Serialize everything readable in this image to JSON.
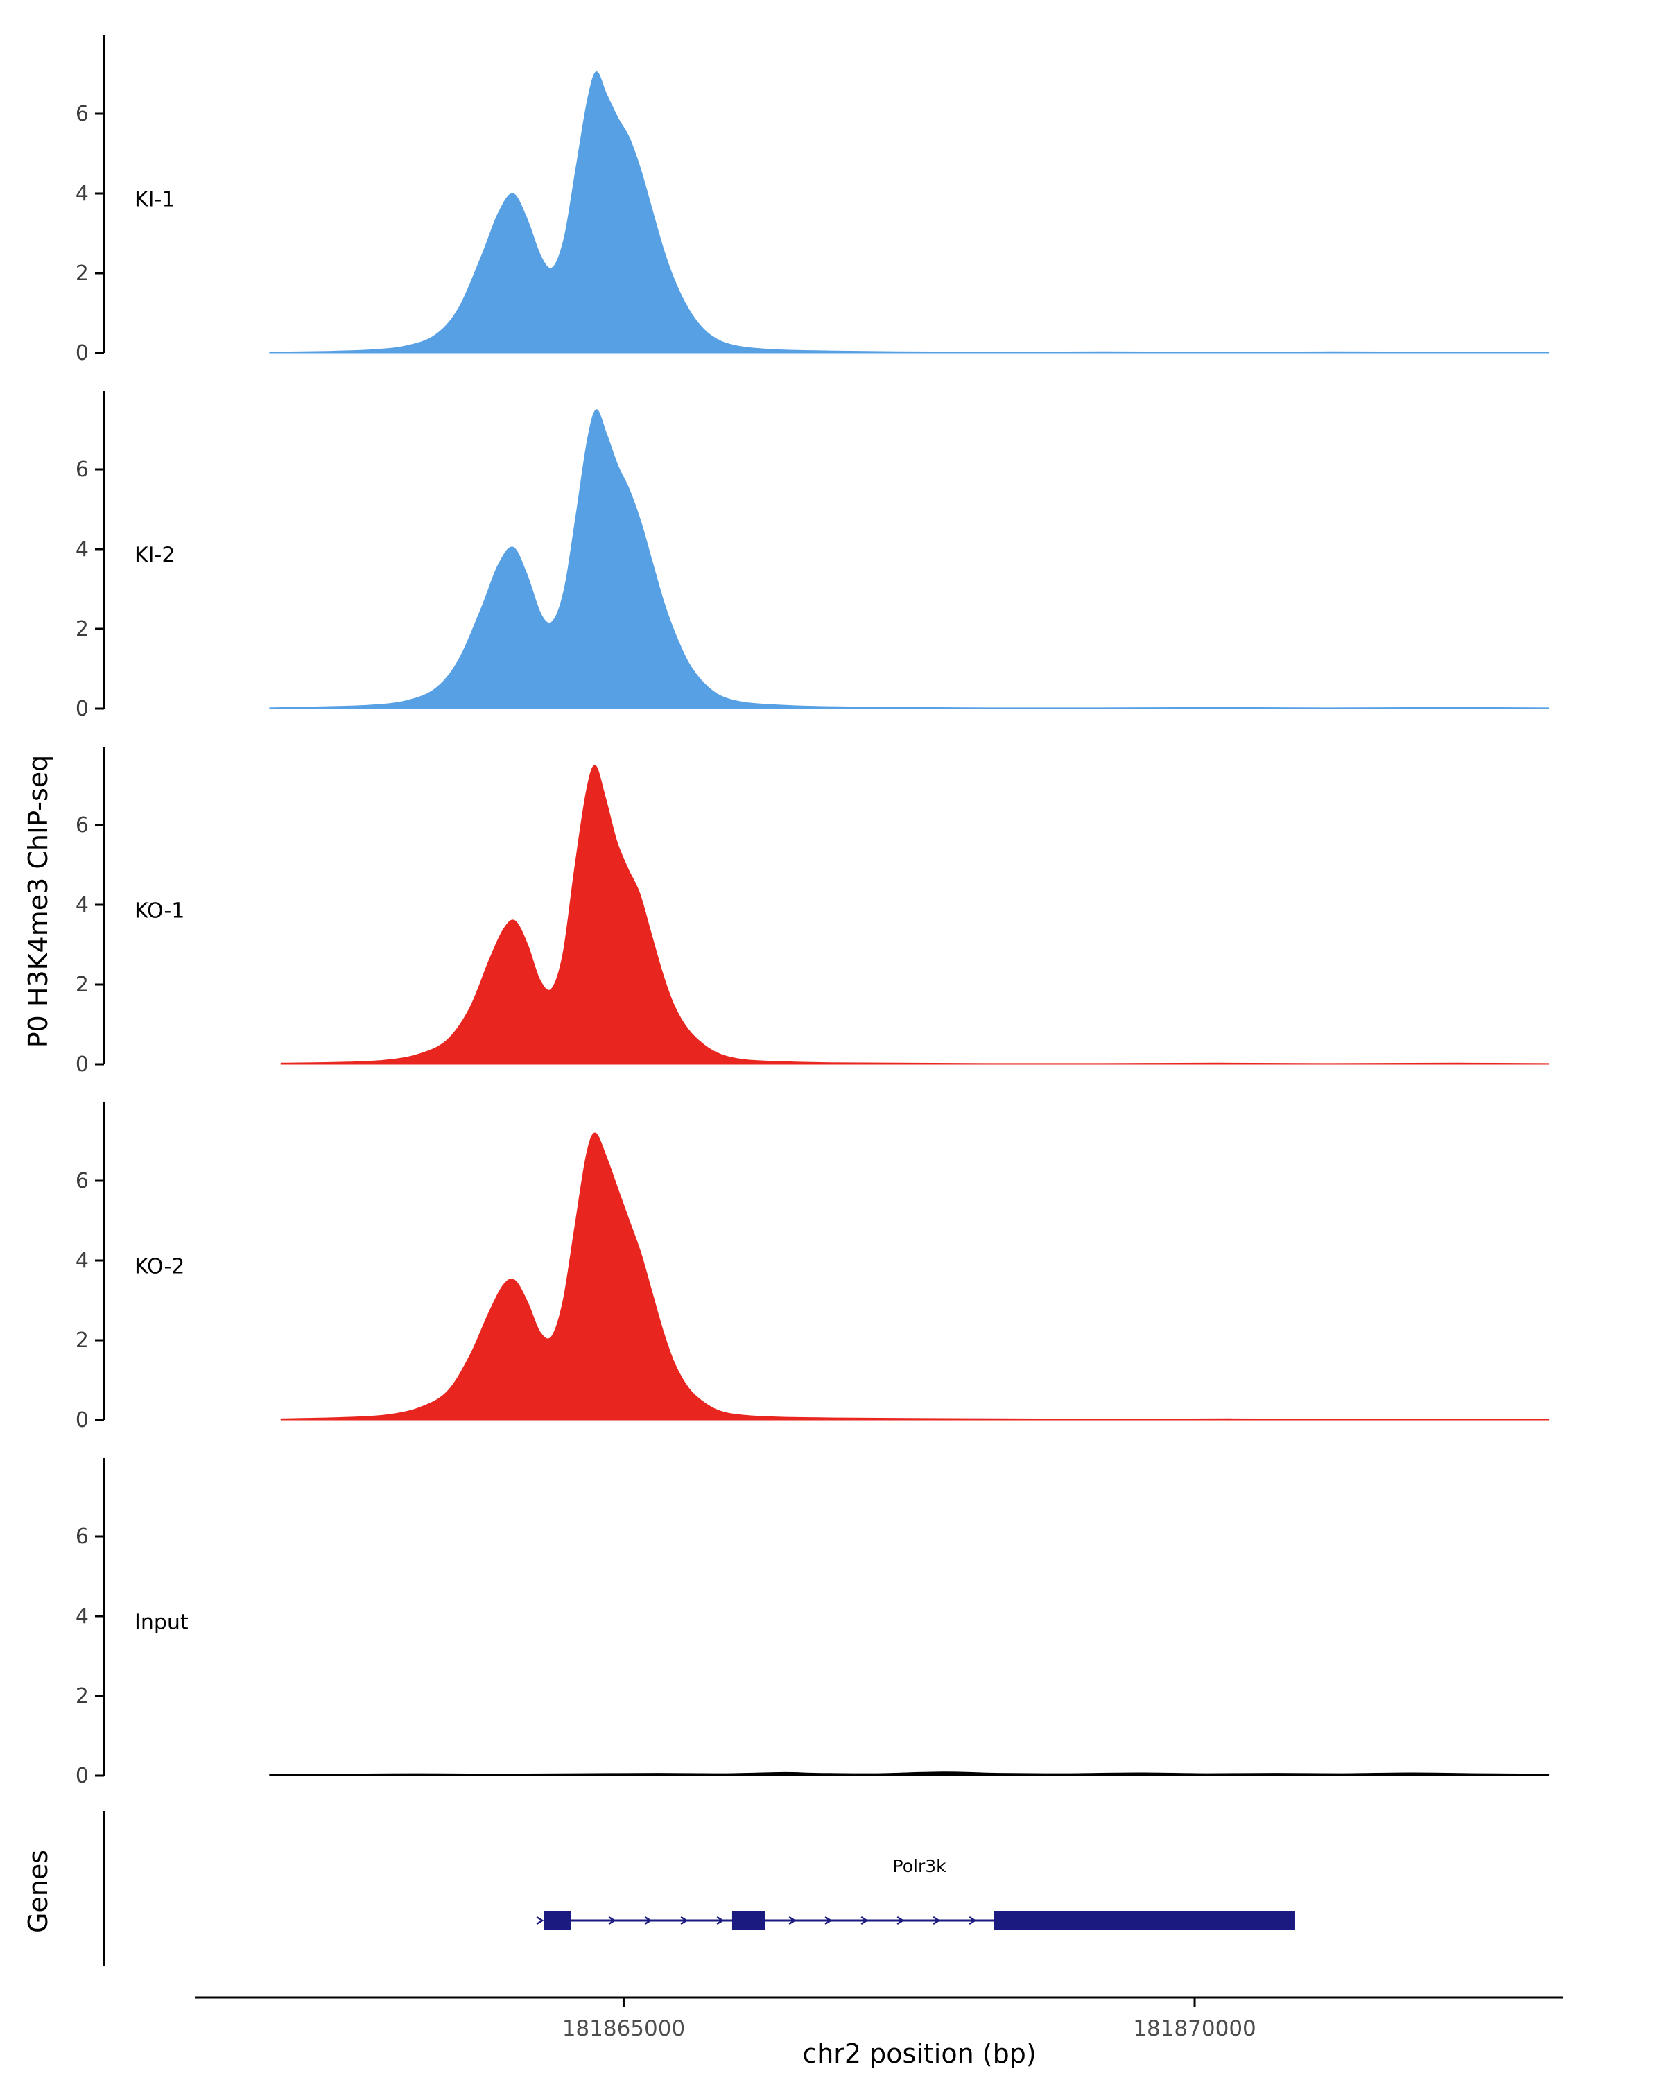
{
  "figure": {
    "y_axis_title": "P0 H3K4me3 ChIP-seq",
    "genes_axis_title": "Genes",
    "x_axis_title": "chr2 position (bp)"
  },
  "chart_data": {
    "type": "area",
    "title": "",
    "xlabel": "chr2 position (bp)",
    "ylabel": "P0 H3K4me3 ChIP-seq",
    "xlim": [
      181860450,
      181873260
    ],
    "ylim": [
      0,
      8
    ],
    "y_ticks": [
      0,
      2,
      4,
      6
    ],
    "x_ticks": [
      {
        "value": 181865000,
        "label": "181865000"
      },
      {
        "value": 181870000,
        "label": "181870000"
      }
    ],
    "grid": false,
    "legend": "none",
    "tracks": [
      {
        "name": "KI-1",
        "color": "#58A0E4",
        "points": [
          [
            181861900,
            0.02
          ],
          [
            181862400,
            0.04
          ],
          [
            181862800,
            0.08
          ],
          [
            181863100,
            0.18
          ],
          [
            181863350,
            0.45
          ],
          [
            181863550,
            1.1
          ],
          [
            181863750,
            2.4
          ],
          [
            181863900,
            3.5
          ],
          [
            181864030,
            4.0
          ],
          [
            181864150,
            3.4
          ],
          [
            181864280,
            2.4
          ],
          [
            181864380,
            2.15
          ],
          [
            181864480,
            2.9
          ],
          [
            181864580,
            4.6
          ],
          [
            181864680,
            6.3
          ],
          [
            181864760,
            7.05
          ],
          [
            181864850,
            6.5
          ],
          [
            181864950,
            5.9
          ],
          [
            181865050,
            5.4
          ],
          [
            181865150,
            4.6
          ],
          [
            181865250,
            3.6
          ],
          [
            181865350,
            2.6
          ],
          [
            181865450,
            1.8
          ],
          [
            181865570,
            1.1
          ],
          [
            181865700,
            0.6
          ],
          [
            181865850,
            0.3
          ],
          [
            181866050,
            0.15
          ],
          [
            181866350,
            0.08
          ],
          [
            181866800,
            0.05
          ],
          [
            181867400,
            0.03
          ],
          [
            181868200,
            0.02
          ],
          [
            181869200,
            0.03
          ],
          [
            181870200,
            0.02
          ],
          [
            181871200,
            0.03
          ],
          [
            181872300,
            0.02
          ],
          [
            181873100,
            0.02
          ]
        ]
      },
      {
        "name": "KI-2",
        "color": "#58A0E4",
        "points": [
          [
            181861900,
            0.02
          ],
          [
            181862400,
            0.05
          ],
          [
            181862800,
            0.09
          ],
          [
            181863100,
            0.2
          ],
          [
            181863350,
            0.5
          ],
          [
            181863550,
            1.2
          ],
          [
            181863750,
            2.5
          ],
          [
            181863900,
            3.6
          ],
          [
            181864030,
            4.05
          ],
          [
            181864150,
            3.4
          ],
          [
            181864280,
            2.35
          ],
          [
            181864380,
            2.2
          ],
          [
            181864480,
            3.0
          ],
          [
            181864580,
            4.8
          ],
          [
            181864680,
            6.7
          ],
          [
            181864760,
            7.5
          ],
          [
            181864850,
            6.9
          ],
          [
            181864950,
            6.1
          ],
          [
            181865050,
            5.5
          ],
          [
            181865150,
            4.7
          ],
          [
            181865250,
            3.7
          ],
          [
            181865350,
            2.7
          ],
          [
            181865450,
            1.9
          ],
          [
            181865570,
            1.15
          ],
          [
            181865700,
            0.65
          ],
          [
            181865850,
            0.32
          ],
          [
            181866050,
            0.16
          ],
          [
            181866350,
            0.09
          ],
          [
            181866800,
            0.05
          ],
          [
            181867400,
            0.03
          ],
          [
            181868200,
            0.02
          ],
          [
            181869200,
            0.02
          ],
          [
            181870200,
            0.03
          ],
          [
            181871200,
            0.02
          ],
          [
            181872300,
            0.03
          ],
          [
            181873100,
            0.02
          ]
        ]
      },
      {
        "name": "KO-1",
        "color": "#E8261F",
        "points": [
          [
            181862000,
            0.03
          ],
          [
            181862500,
            0.05
          ],
          [
            181862900,
            0.1
          ],
          [
            181863200,
            0.25
          ],
          [
            181863450,
            0.6
          ],
          [
            181863650,
            1.4
          ],
          [
            181863820,
            2.6
          ],
          [
            181863950,
            3.4
          ],
          [
            181864050,
            3.6
          ],
          [
            181864160,
            3.0
          ],
          [
            181864270,
            2.1
          ],
          [
            181864370,
            1.9
          ],
          [
            181864470,
            2.8
          ],
          [
            181864570,
            4.9
          ],
          [
            181864670,
            6.8
          ],
          [
            181864750,
            7.5
          ],
          [
            181864840,
            6.7
          ],
          [
            181864940,
            5.6
          ],
          [
            181865040,
            4.9
          ],
          [
            181865140,
            4.3
          ],
          [
            181865240,
            3.3
          ],
          [
            181865340,
            2.3
          ],
          [
            181865440,
            1.5
          ],
          [
            181865560,
            0.9
          ],
          [
            181865700,
            0.5
          ],
          [
            181865850,
            0.25
          ],
          [
            181866050,
            0.12
          ],
          [
            181866350,
            0.07
          ],
          [
            181866800,
            0.04
          ],
          [
            181867400,
            0.03
          ],
          [
            181868200,
            0.02
          ],
          [
            181869200,
            0.02
          ],
          [
            181870200,
            0.03
          ],
          [
            181871200,
            0.02
          ],
          [
            181872300,
            0.03
          ],
          [
            181873100,
            0.02
          ]
        ]
      },
      {
        "name": "KO-2",
        "color": "#E8261F",
        "points": [
          [
            181862000,
            0.03
          ],
          [
            181862500,
            0.06
          ],
          [
            181862900,
            0.12
          ],
          [
            181863200,
            0.3
          ],
          [
            181863450,
            0.7
          ],
          [
            181863650,
            1.6
          ],
          [
            181863820,
            2.7
          ],
          [
            181863950,
            3.4
          ],
          [
            181864050,
            3.5
          ],
          [
            181864160,
            2.95
          ],
          [
            181864270,
            2.2
          ],
          [
            181864370,
            2.1
          ],
          [
            181864470,
            3.0
          ],
          [
            181864570,
            4.8
          ],
          [
            181864670,
            6.6
          ],
          [
            181864750,
            7.2
          ],
          [
            181864850,
            6.6
          ],
          [
            181864950,
            5.8
          ],
          [
            181865050,
            5.0
          ],
          [
            181865150,
            4.2
          ],
          [
            181865250,
            3.2
          ],
          [
            181865350,
            2.2
          ],
          [
            181865450,
            1.4
          ],
          [
            181865570,
            0.8
          ],
          [
            181865700,
            0.45
          ],
          [
            181865850,
            0.22
          ],
          [
            181866050,
            0.12
          ],
          [
            181866400,
            0.07
          ],
          [
            181866900,
            0.05
          ],
          [
            181867500,
            0.04
          ],
          [
            181868300,
            0.03
          ],
          [
            181869300,
            0.02
          ],
          [
            181870300,
            0.03
          ],
          [
            181871300,
            0.02
          ],
          [
            181872300,
            0.02
          ],
          [
            181873100,
            0.02
          ]
        ]
      },
      {
        "name": "Input",
        "color": "#000000",
        "points": [
          [
            181861900,
            0.03
          ],
          [
            181862500,
            0.04
          ],
          [
            181863200,
            0.05
          ],
          [
            181863900,
            0.04
          ],
          [
            181864600,
            0.05
          ],
          [
            181865300,
            0.06
          ],
          [
            181865900,
            0.05
          ],
          [
            181866400,
            0.08
          ],
          [
            181866700,
            0.06
          ],
          [
            181867200,
            0.05
          ],
          [
            181867800,
            0.09
          ],
          [
            181868300,
            0.06
          ],
          [
            181868900,
            0.05
          ],
          [
            181869500,
            0.07
          ],
          [
            181870100,
            0.05
          ],
          [
            181870700,
            0.06
          ],
          [
            181871300,
            0.05
          ],
          [
            181871900,
            0.07
          ],
          [
            181872500,
            0.05
          ],
          [
            181873100,
            0.04
          ]
        ]
      }
    ],
    "gene_track": {
      "label": "Genes",
      "gene": {
        "name": "Polr3k",
        "strand": "+",
        "color": "#1A1A80",
        "start": 181864300,
        "end": 181870880,
        "exons": [
          {
            "start": 181864300,
            "end": 181864540
          },
          {
            "start": 181865950,
            "end": 181866240
          },
          {
            "start": 181868240,
            "end": 181870880
          }
        ]
      }
    }
  }
}
